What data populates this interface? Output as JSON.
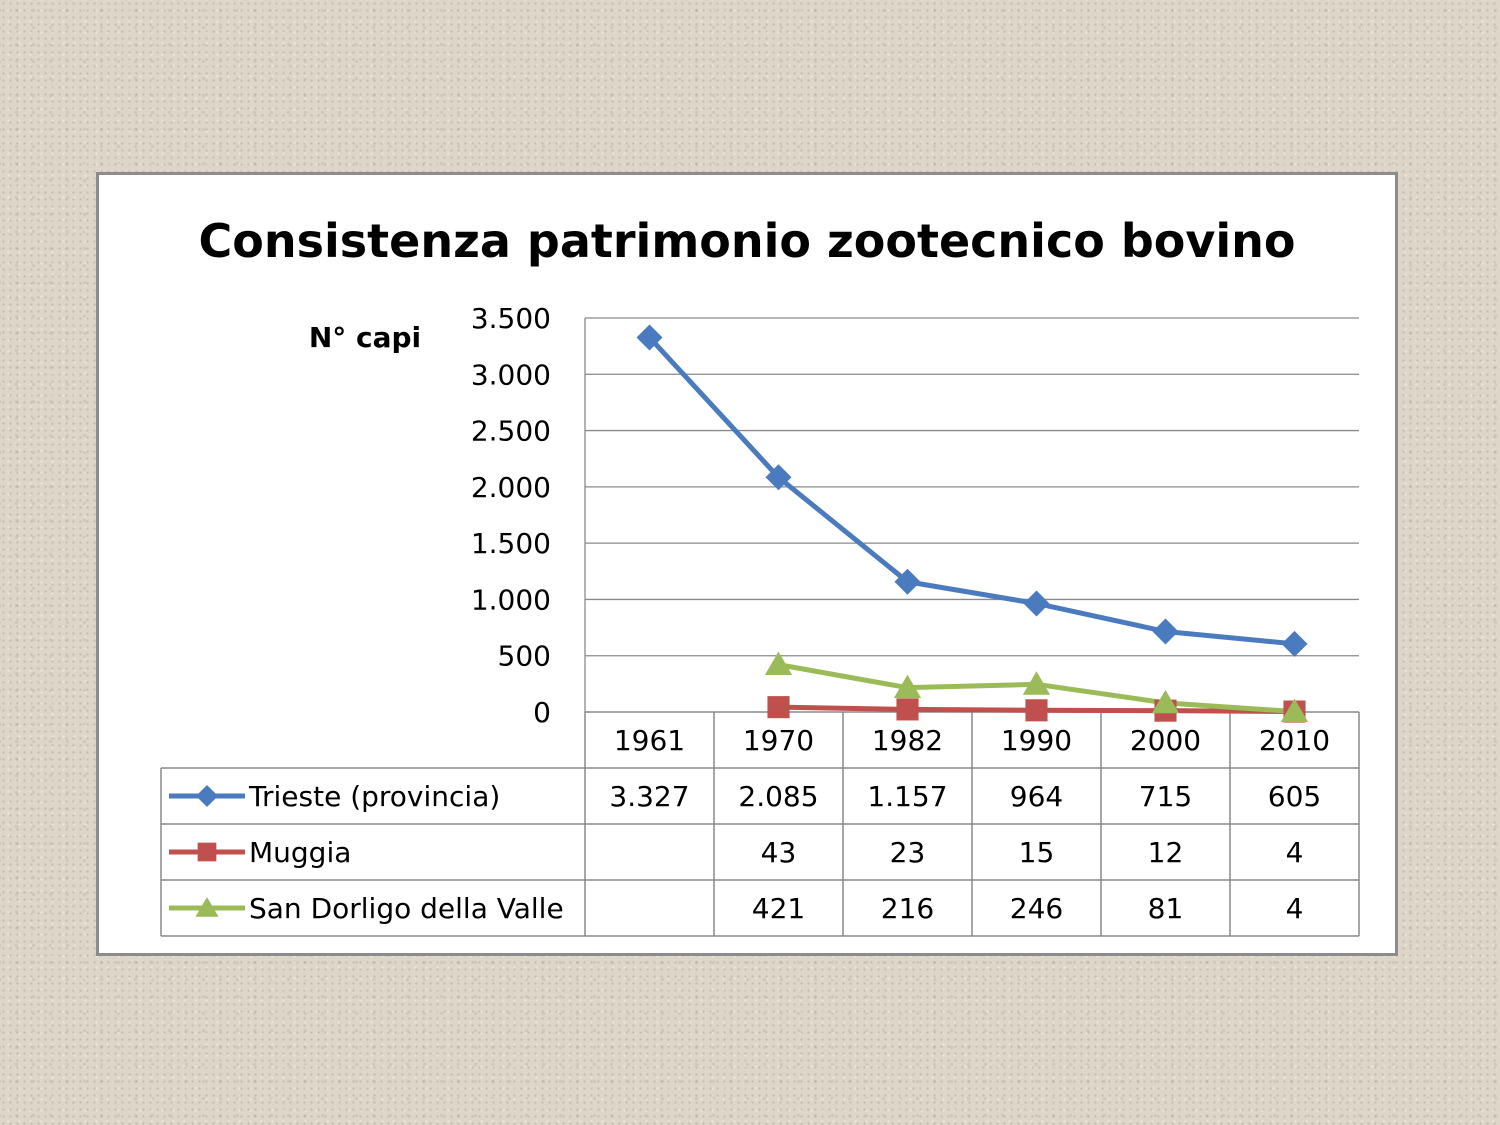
{
  "chart_data": {
    "type": "line",
    "title": "Consistenza patrimonio zootecnico bovino",
    "ylabel": "N° capi",
    "xlabel": "",
    "categories": [
      "1961",
      "1970",
      "1982",
      "1990",
      "2000",
      "2010"
    ],
    "ylim": [
      0,
      3500
    ],
    "yticks": [
      0,
      500,
      1000,
      1500,
      2000,
      2500,
      3000,
      3500
    ],
    "ytick_labels": [
      "0",
      "500",
      "1.000",
      "1.500",
      "2.000",
      "2.500",
      "3.000",
      "3.500"
    ],
    "grid": true,
    "legend": "data-table",
    "series": [
      {
        "name": "Trieste (provincia)",
        "values": [
          3327,
          2085,
          1157,
          964,
          715,
          605
        ],
        "labels": [
          "3.327",
          "2.085",
          "1.157",
          "964",
          "715",
          "605"
        ],
        "color": "#4a7bbf",
        "marker": "diamond"
      },
      {
        "name": "Muggia",
        "values": [
          null,
          43,
          23,
          15,
          12,
          4
        ],
        "labels": [
          "",
          "43",
          "23",
          "15",
          "12",
          "4"
        ],
        "color": "#c0504d",
        "marker": "square"
      },
      {
        "name": "San Dorligo della Valle",
        "values": [
          null,
          421,
          216,
          246,
          81,
          4
        ],
        "labels": [
          "",
          "421",
          "216",
          "246",
          "81",
          "4"
        ],
        "color": "#9bbb59",
        "marker": "triangle"
      }
    ]
  }
}
